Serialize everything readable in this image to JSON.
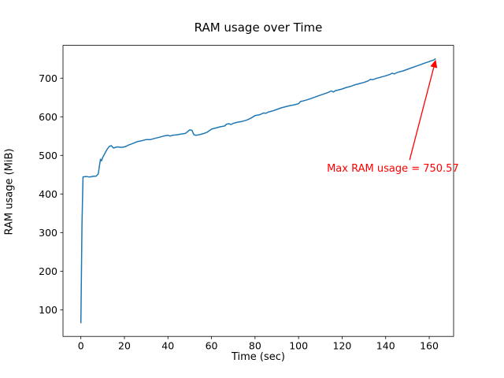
{
  "figure": {
    "background": "#ffffff"
  },
  "chart_data": {
    "type": "line",
    "title": "RAM usage over Time",
    "xlabel": "Time (sec)",
    "ylabel": "RAM usage (MiB)",
    "xlim": [
      -8.2,
      171.2
    ],
    "ylim": [
      31,
      785
    ],
    "x_ticks": [
      0,
      20,
      40,
      60,
      80,
      100,
      120,
      140,
      160
    ],
    "y_ticks": [
      100,
      200,
      300,
      400,
      500,
      600,
      700
    ],
    "grid": false,
    "legend": "none",
    "line_color": "#1f77b4",
    "max_value": 750.57,
    "annotation": {
      "text": "Max RAM usage = 750.57",
      "color": "#ff0000",
      "text_xy": [
        113,
        452
      ],
      "arrow_start_xy": [
        151,
        488
      ],
      "arrow_tip_xy": [
        163,
        748
      ]
    },
    "series": [
      {
        "name": "RAM usage",
        "points": [
          [
            0,
            65
          ],
          [
            0.5,
            320
          ],
          [
            1,
            444
          ],
          [
            2,
            445
          ],
          [
            3,
            445
          ],
          [
            4,
            444
          ],
          [
            5,
            445
          ],
          [
            6,
            446
          ],
          [
            7,
            446
          ],
          [
            8,
            452
          ],
          [
            8.5,
            472
          ],
          [
            9,
            490
          ],
          [
            9.5,
            486
          ],
          [
            10,
            494
          ],
          [
            11,
            505
          ],
          [
            12,
            515
          ],
          [
            13,
            523
          ],
          [
            14,
            525
          ],
          [
            15,
            519
          ],
          [
            16,
            521
          ],
          [
            17,
            522
          ],
          [
            18,
            521
          ],
          [
            19,
            521
          ],
          [
            20,
            522
          ],
          [
            21,
            524
          ],
          [
            22,
            527
          ],
          [
            24,
            531
          ],
          [
            26,
            536
          ],
          [
            28,
            538
          ],
          [
            30,
            541
          ],
          [
            32,
            541
          ],
          [
            34,
            544
          ],
          [
            36,
            547
          ],
          [
            38,
            550
          ],
          [
            40,
            552
          ],
          [
            41,
            550
          ],
          [
            42,
            552
          ],
          [
            44,
            553
          ],
          [
            46,
            555
          ],
          [
            48,
            557
          ],
          [
            50,
            566
          ],
          [
            51,
            565
          ],
          [
            52,
            553
          ],
          [
            53,
            552
          ],
          [
            54,
            553
          ],
          [
            56,
            556
          ],
          [
            58,
            560
          ],
          [
            60,
            568
          ],
          [
            62,
            571
          ],
          [
            64,
            574
          ],
          [
            66,
            576
          ],
          [
            67,
            581
          ],
          [
            68,
            582
          ],
          [
            69,
            580
          ],
          [
            70,
            583
          ],
          [
            72,
            586
          ],
          [
            74,
            588
          ],
          [
            76,
            591
          ],
          [
            78,
            596
          ],
          [
            80,
            603
          ],
          [
            82,
            605
          ],
          [
            84,
            610
          ],
          [
            85,
            609
          ],
          [
            86,
            612
          ],
          [
            88,
            615
          ],
          [
            90,
            619
          ],
          [
            92,
            623
          ],
          [
            94,
            626
          ],
          [
            96,
            629
          ],
          [
            98,
            631
          ],
          [
            100,
            634
          ],
          [
            101,
            640
          ],
          [
            102,
            641
          ],
          [
            104,
            644
          ],
          [
            106,
            648
          ],
          [
            108,
            652
          ],
          [
            110,
            656
          ],
          [
            112,
            660
          ],
          [
            114,
            664
          ],
          [
            115,
            667
          ],
          [
            116,
            664
          ],
          [
            117,
            668
          ],
          [
            118,
            669
          ],
          [
            120,
            672
          ],
          [
            122,
            676
          ],
          [
            124,
            679
          ],
          [
            126,
            683
          ],
          [
            128,
            686
          ],
          [
            130,
            689
          ],
          [
            132,
            693
          ],
          [
            133,
            697
          ],
          [
            134,
            696
          ],
          [
            136,
            700
          ],
          [
            138,
            703
          ],
          [
            140,
            706
          ],
          [
            142,
            710
          ],
          [
            143,
            713
          ],
          [
            144,
            711
          ],
          [
            145,
            714
          ],
          [
            146,
            716
          ],
          [
            148,
            719
          ],
          [
            150,
            723
          ],
          [
            152,
            727
          ],
          [
            154,
            731
          ],
          [
            156,
            735
          ],
          [
            158,
            739
          ],
          [
            160,
            743
          ],
          [
            161,
            745
          ],
          [
            162,
            747
          ],
          [
            163,
            750.57
          ]
        ]
      }
    ]
  }
}
